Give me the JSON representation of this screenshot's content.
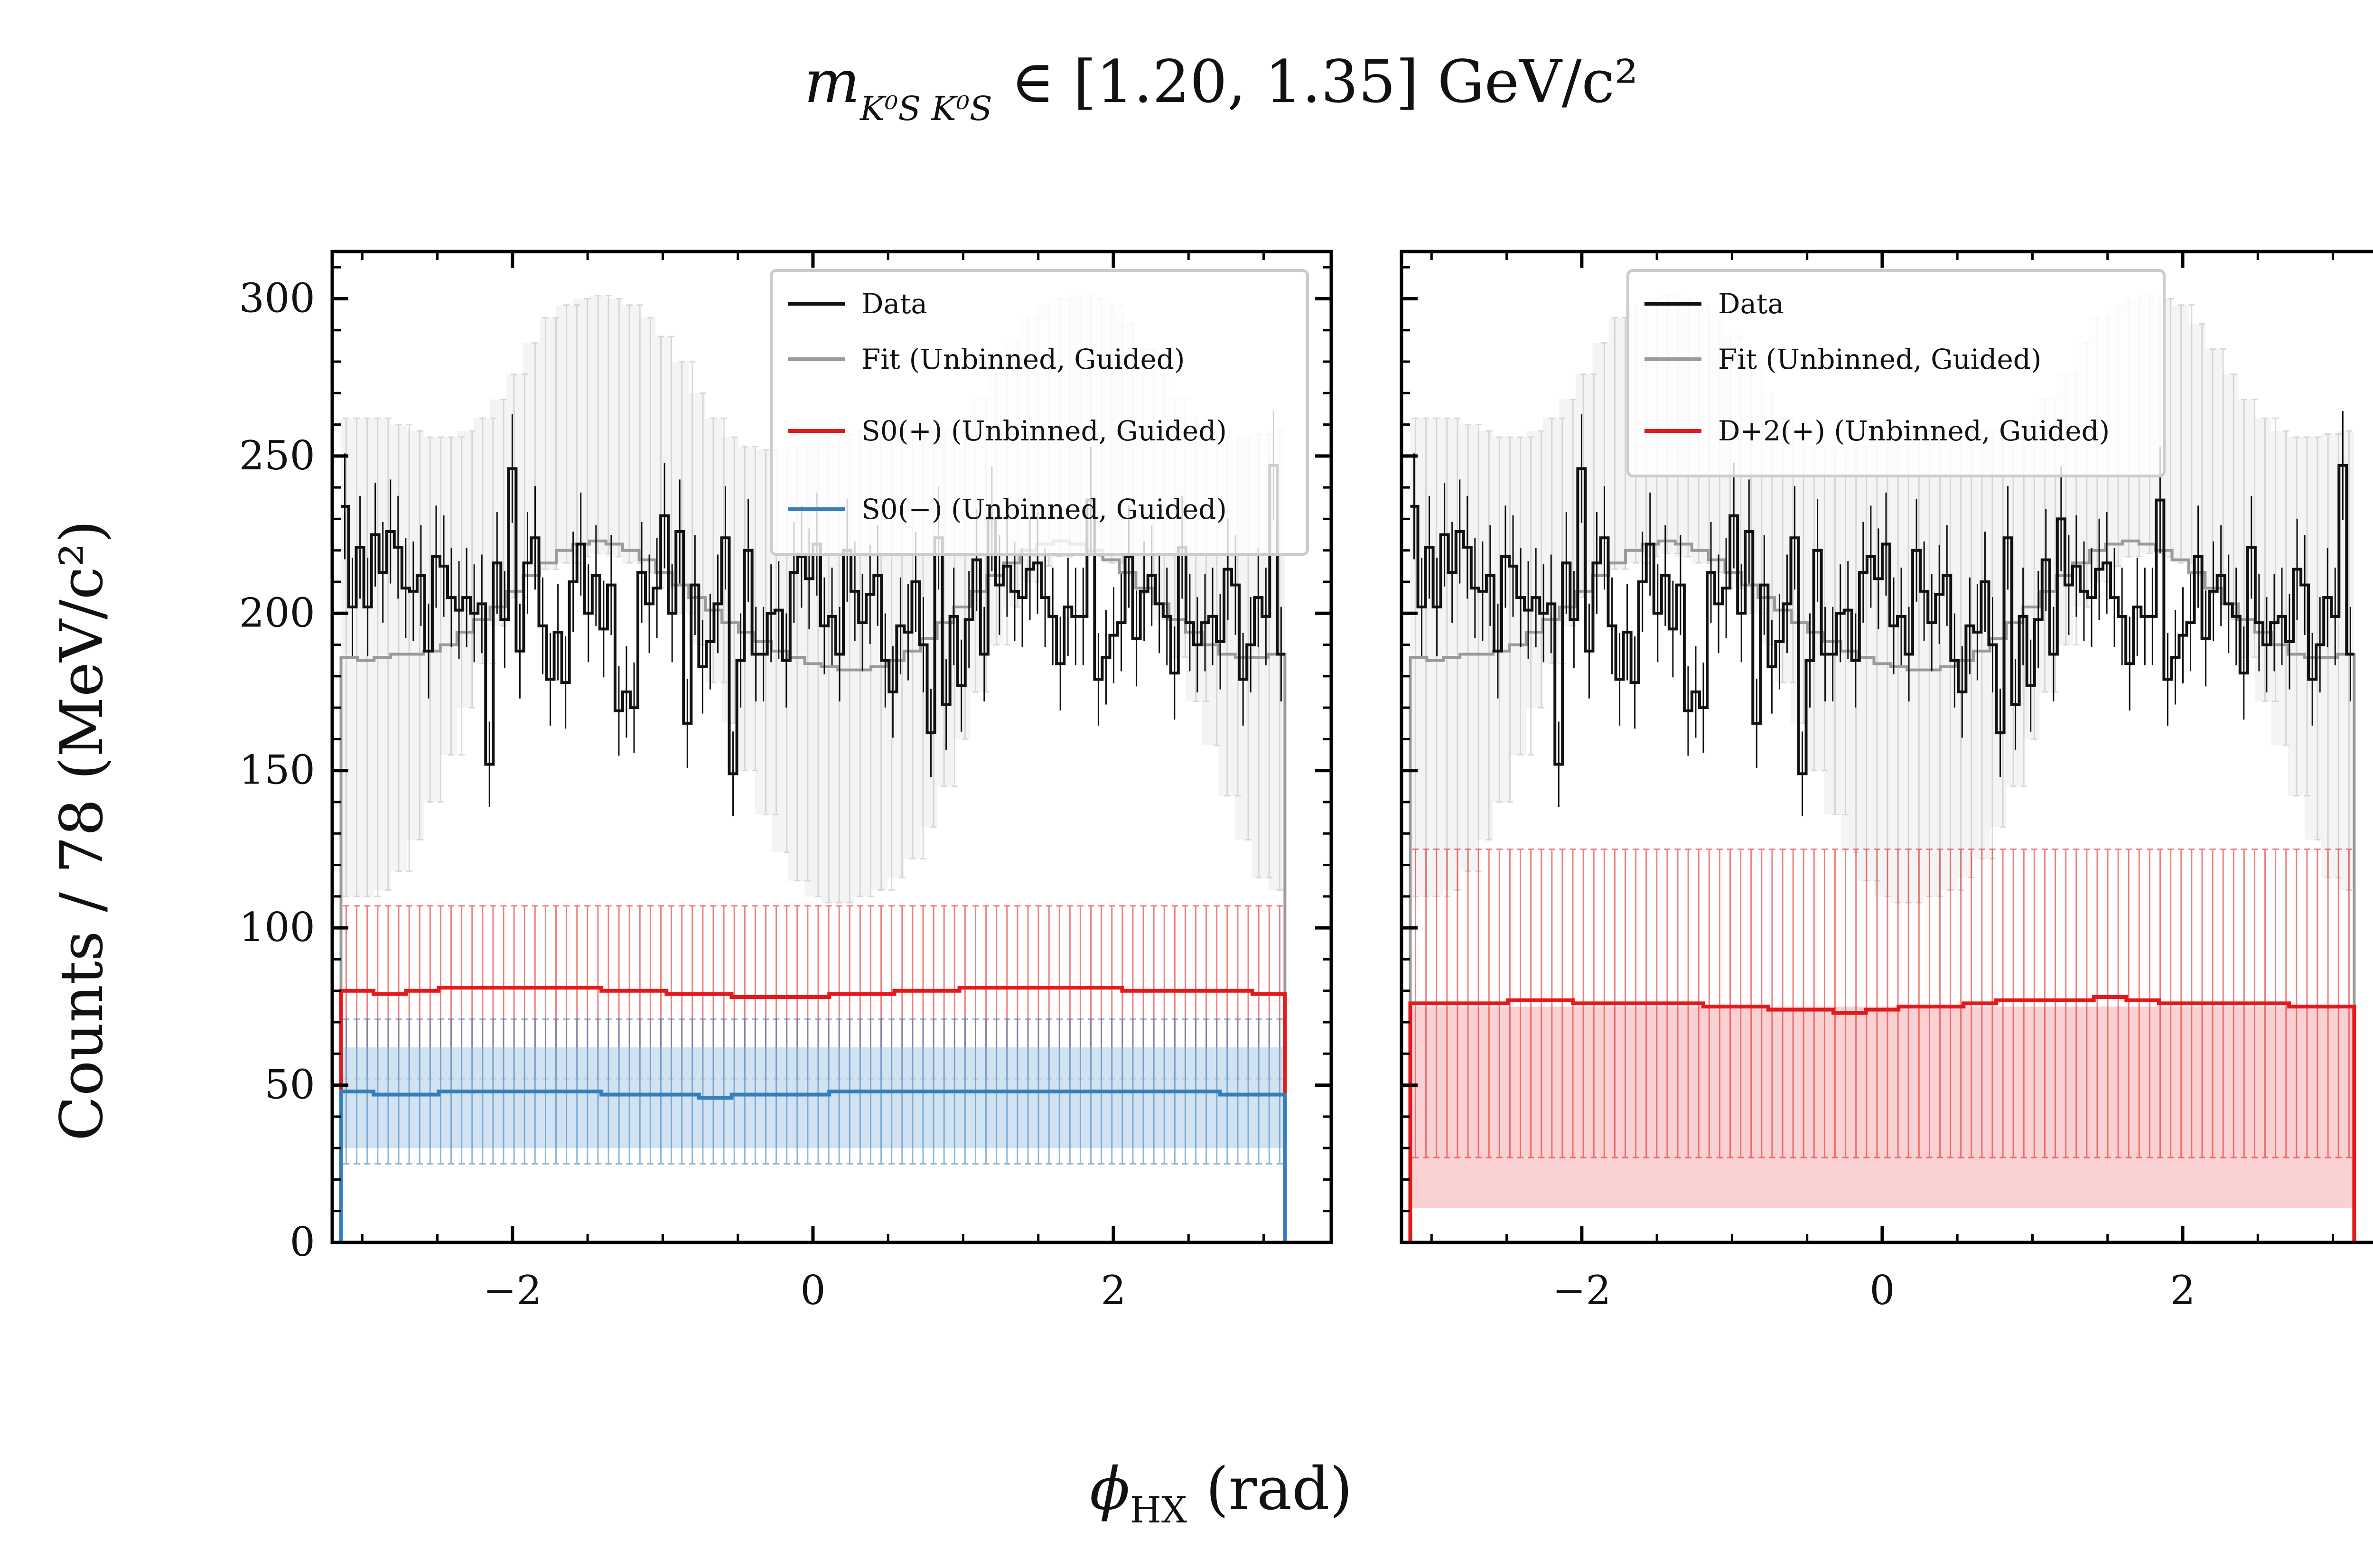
{
  "figure": {
    "suptitle_symbol": "m",
    "suptitle_subscript": "K⁰S K⁰S",
    "suptitle_rest": " ∈ [1.20, 1.35] GeV/c²",
    "xlabel": "ϕHX (rad)",
    "xlabel_symbol": "ϕ",
    "xlabel_sub": "HX",
    "xlabel_rest": " (rad)",
    "ylabel": "Counts / 78 (MeV/c²)"
  },
  "colors": {
    "data": "#111111",
    "fit": "#9a9a9a",
    "fit_band": "#e6e6e6",
    "red": "#e31a1c",
    "red_band": "#f7c6c7",
    "blue": "#377eb8",
    "blue_band": "#c6dbef"
  },
  "chart_data": [
    {
      "type": "line",
      "panel": "left",
      "xlim": [
        -3.2,
        3.45
      ],
      "ylim": [
        0,
        315
      ],
      "xticks": [
        -2,
        0,
        2
      ],
      "xtick_labels": [
        "−2",
        "0",
        "2"
      ],
      "yticks": [
        0,
        50,
        100,
        150,
        200,
        250,
        300
      ],
      "ytick_labels": [
        "0",
        "50",
        "100",
        "150",
        "200",
        "250",
        "300"
      ],
      "grid": false,
      "legend_position": "top-right",
      "legend": [
        {
          "label": "Data",
          "series": "data"
        },
        {
          "label": "Fit (Unbinned, Guided)",
          "series": "fit"
        },
        {
          "label": "S0(+) (Unbinned, Guided)",
          "series": "red"
        },
        {
          "label": "S0(−) (Unbinned, Guided)",
          "series": "blue"
        }
      ],
      "series": [
        {
          "name": "Data",
          "kind": "data",
          "values": [
            234,
            202,
            221,
            202,
            225,
            213,
            226,
            221,
            208,
            207,
            212,
            188,
            218,
            215,
            205,
            201,
            205,
            200,
            203,
            152,
            216,
            198,
            246,
            188,
            216,
            224,
            196,
            179,
            194,
            178,
            210,
            222,
            200,
            212,
            195,
            209,
            169,
            175,
            170,
            213,
            203,
            208,
            231,
            200,
            226,
            165,
            209,
            183,
            191,
            203,
            224,
            149,
            185,
            220,
            187,
            187,
            200,
            201,
            185,
            213,
            218,
            211,
            222,
            196,
            199,
            187,
            220,
            207,
            197,
            206,
            212,
            185,
            175,
            196,
            194,
            210,
            190,
            162,
            224,
            171,
            199,
            177,
            198,
            217,
            187,
            230,
            209,
            215,
            207,
            205,
            214,
            216,
            205,
            199,
            184,
            202,
            199,
            199,
            236,
            179,
            186,
            193,
            197,
            218,
            192,
            207,
            212,
            203,
            199,
            181,
            221,
            197,
            190,
            197,
            199,
            191,
            214,
            209,
            179,
            190,
            205,
            199,
            247,
            187
          ]
        },
        {
          "name": "Fit (Unbinned, Guided)",
          "kind": "fit",
          "values": [
            186,
            185,
            186,
            187,
            187,
            188,
            190,
            194,
            198,
            202,
            207,
            212,
            216,
            220,
            222,
            223,
            222,
            220,
            217,
            213,
            209,
            205,
            201,
            197,
            194,
            191,
            188,
            186,
            184,
            183,
            182,
            182,
            183,
            185,
            188,
            192,
            197,
            202,
            207,
            212,
            216,
            220,
            222,
            223,
            222,
            220,
            217,
            213,
            208,
            203,
            198,
            194,
            190,
            187,
            186,
            186,
            187
          ],
          "band_lo": [
            110,
            110,
            112,
            118,
            128,
            140,
            155,
            170,
            184,
            196,
            205,
            212,
            214,
            216,
            218,
            219,
            218,
            216,
            213,
            208,
            200,
            190,
            178,
            165,
            150,
            136,
            124,
            115,
            110,
            108,
            108,
            110,
            112,
            116,
            122,
            132,
            145,
            160,
            175,
            190,
            202,
            210,
            215,
            218,
            219,
            218,
            216,
            212,
            206,
            198,
            186,
            172,
            158,
            142,
            128,
            116,
            112
          ],
          "band_hi": [
            262,
            262,
            262,
            260,
            258,
            256,
            256,
            258,
            262,
            268,
            276,
            286,
            294,
            298,
            300,
            301,
            300,
            298,
            294,
            288,
            280,
            270,
            262,
            256,
            253,
            252,
            252,
            253,
            255,
            256,
            257,
            258,
            258,
            258,
            258,
            258,
            258,
            262,
            268,
            276,
            286,
            294,
            298,
            300,
            301,
            300,
            298,
            292,
            284,
            276,
            268,
            262,
            258,
            256,
            256,
            257,
            258
          ]
        },
        {
          "name": "S0(+) (Unbinned, Guided)",
          "kind": "red",
          "values": [
            80,
            79,
            80,
            81,
            81,
            81,
            81,
            81,
            80,
            80,
            79,
            79,
            78,
            78,
            78,
            79,
            79,
            80,
            80,
            81,
            81,
            81,
            81,
            81,
            80,
            80,
            80,
            80,
            79
          ],
          "err_lo": 52,
          "err_hi": 107
        },
        {
          "name": "S0(−) (Unbinned, Guided)",
          "kind": "blue",
          "values": [
            48,
            47,
            47,
            48,
            48,
            48,
            48,
            48,
            47,
            47,
            47,
            46,
            47,
            47,
            47,
            48,
            48,
            48,
            48,
            48,
            48,
            48,
            48,
            48,
            48,
            48,
            48,
            47,
            47
          ],
          "band_lo": 30,
          "band_hi": 62,
          "err_lo": 25,
          "err_hi": 71
        }
      ]
    },
    {
      "type": "line",
      "panel": "right",
      "xlim": [
        -3.2,
        3.45
      ],
      "ylim": [
        0,
        315
      ],
      "xticks": [
        -2,
        0,
        2
      ],
      "xtick_labels": [
        "−2",
        "0",
        "2"
      ],
      "grid": false,
      "legend_position": "top-center",
      "legend": [
        {
          "label": "Data",
          "series": "data"
        },
        {
          "label": "Fit (Unbinned, Guided)",
          "series": "fit"
        },
        {
          "label": "D+2(+) (Unbinned, Guided)",
          "series": "red"
        }
      ],
      "series": [
        {
          "name": "Data",
          "kind": "data",
          "values": [
            234,
            202,
            221,
            202,
            225,
            213,
            226,
            221,
            208,
            207,
            212,
            188,
            218,
            215,
            205,
            201,
            205,
            200,
            203,
            152,
            216,
            198,
            246,
            188,
            216,
            224,
            196,
            179,
            194,
            178,
            210,
            222,
            200,
            212,
            195,
            209,
            169,
            175,
            170,
            213,
            203,
            208,
            231,
            200,
            226,
            165,
            209,
            183,
            191,
            203,
            224,
            149,
            185,
            220,
            187,
            187,
            200,
            201,
            185,
            213,
            218,
            211,
            222,
            196,
            199,
            187,
            220,
            207,
            197,
            206,
            212,
            185,
            175,
            196,
            194,
            210,
            190,
            162,
            224,
            171,
            199,
            177,
            198,
            217,
            187,
            230,
            209,
            215,
            207,
            205,
            214,
            216,
            205,
            199,
            184,
            202,
            199,
            199,
            236,
            179,
            186,
            193,
            197,
            218,
            192,
            207,
            212,
            203,
            199,
            181,
            221,
            197,
            190,
            197,
            199,
            191,
            214,
            209,
            179,
            190,
            205,
            199,
            247,
            187
          ]
        },
        {
          "name": "Fit (Unbinned, Guided)",
          "kind": "fit",
          "values": [
            186,
            185,
            186,
            187,
            187,
            188,
            190,
            194,
            198,
            202,
            207,
            212,
            216,
            220,
            222,
            223,
            222,
            220,
            217,
            213,
            209,
            205,
            201,
            197,
            194,
            191,
            188,
            186,
            184,
            183,
            182,
            182,
            183,
            185,
            188,
            192,
            197,
            202,
            207,
            212,
            216,
            220,
            222,
            223,
            222,
            220,
            217,
            213,
            208,
            203,
            198,
            194,
            190,
            187,
            186,
            186,
            187
          ],
          "band_lo": [
            110,
            110,
            112,
            118,
            128,
            140,
            155,
            170,
            184,
            196,
            205,
            212,
            214,
            216,
            218,
            219,
            218,
            216,
            213,
            208,
            200,
            190,
            178,
            165,
            150,
            136,
            124,
            115,
            110,
            108,
            108,
            110,
            112,
            116,
            122,
            132,
            145,
            160,
            175,
            190,
            202,
            210,
            215,
            218,
            219,
            218,
            216,
            212,
            206,
            198,
            186,
            172,
            158,
            142,
            128,
            116,
            112
          ],
          "band_hi": [
            262,
            262,
            262,
            260,
            258,
            256,
            256,
            258,
            262,
            268,
            276,
            286,
            294,
            298,
            300,
            301,
            300,
            298,
            294,
            288,
            280,
            270,
            262,
            256,
            253,
            252,
            252,
            253,
            255,
            256,
            257,
            258,
            258,
            258,
            258,
            258,
            258,
            262,
            268,
            276,
            286,
            294,
            298,
            300,
            301,
            300,
            298,
            292,
            284,
            276,
            268,
            262,
            258,
            256,
            256,
            257,
            258
          ]
        },
        {
          "name": "D+2(+) (Unbinned, Guided)",
          "kind": "red",
          "values": [
            76,
            76,
            76,
            77,
            77,
            76,
            76,
            76,
            76,
            75,
            75,
            74,
            74,
            73,
            74,
            75,
            75,
            76,
            77,
            77,
            77,
            78,
            77,
            76,
            76,
            76,
            76,
            75,
            75
          ],
          "band_lo": 11,
          "band_hi": 75,
          "err_lo": 27,
          "err_hi": 125
        }
      ]
    }
  ]
}
